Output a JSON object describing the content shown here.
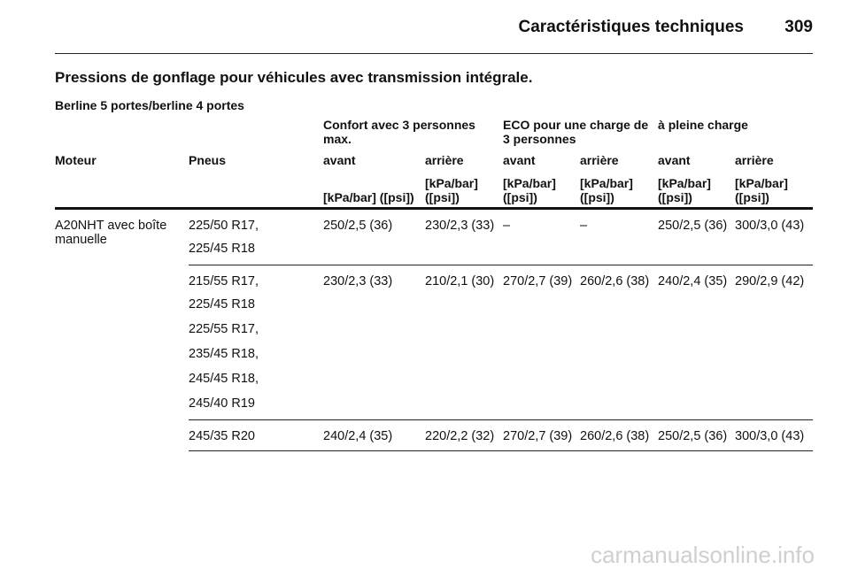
{
  "header": {
    "title": "Caractéristiques techniques",
    "page": "309"
  },
  "section_title": "Pressions de gonflage pour véhicules avec transmission intégrale.",
  "subtitle": "Berline 5 portes/berline 4 portes",
  "table": {
    "group_headers": [
      "Confort avec 3 personnes max.",
      "ECO pour une charge de 3 personnes",
      "à pleine charge"
    ],
    "columns": [
      "Moteur",
      "Pneus",
      "avant",
      "arrière",
      "avant",
      "arrière",
      "avant",
      "arrière"
    ],
    "units": [
      "[kPa/bar] ([psi])",
      "[kPa/bar] ([psi])",
      "[kPa/bar] ([psi])",
      "[kPa/bar] ([psi])",
      "[kPa/bar] ([psi])",
      "[kPa/bar] ([psi])"
    ],
    "engine": "A20NHT avec boîte manuelle",
    "groups": [
      {
        "tyres": [
          "225/50 R17,",
          "225/45 R18"
        ],
        "values": [
          "250/2,5 (36)",
          "230/2,3 (33)",
          "–",
          "–",
          "250/2,5 (36)",
          "300/3,0 (43)"
        ]
      },
      {
        "tyres": [
          "215/55 R17,",
          "225/45 R18",
          "225/55 R17,",
          "235/45 R18,",
          "245/45 R18,",
          "245/40 R19"
        ],
        "values": [
          "230/2,3 (33)",
          "210/2,1 (30)",
          "270/2,7 (39)",
          "260/2,6 (38)",
          "240/2,4 (35)",
          "290/2,9 (42)"
        ]
      },
      {
        "tyres": [
          "245/35 R20"
        ],
        "values": [
          "240/2,4 (35)",
          "220/2,2 (32)",
          "270/2,7 (39)",
          "260/2,6 (38)",
          "250/2,5 (36)",
          "300/3,0 (43)"
        ]
      }
    ]
  },
  "watermark": "carmanualsonline.info"
}
